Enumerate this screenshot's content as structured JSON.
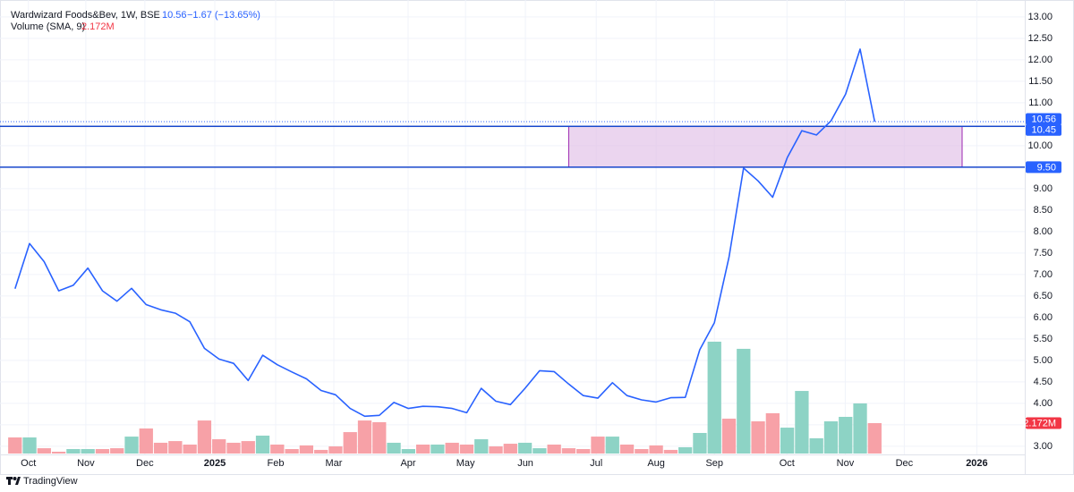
{
  "chart_data": {
    "type": "line",
    "title": "Wardwizard Foods&Bev, 1W, BSE",
    "header": {
      "price": "10.56",
      "change": "−1.67 (−13.65%)"
    },
    "color": "#2962ff",
    "values": [
      6.67,
      7.72,
      7.3,
      6.62,
      6.75,
      7.15,
      6.62,
      6.38,
      6.68,
      6.3,
      6.18,
      6.1,
      5.9,
      5.28,
      5.03,
      4.93,
      4.53,
      5.12,
      4.9,
      4.73,
      4.57,
      4.3,
      4.2,
      3.88,
      3.7,
      3.72,
      4.02,
      3.88,
      3.93,
      3.92,
      3.88,
      3.78,
      4.35,
      4.05,
      3.97,
      4.35,
      4.76,
      4.74,
      4.45,
      4.18,
      4.12,
      4.48,
      4.18,
      4.08,
      4.03,
      4.13,
      4.14,
      5.25,
      5.88,
      7.4,
      9.48,
      9.18,
      8.8,
      9.72,
      10.35,
      10.25,
      10.58,
      11.2,
      12.25,
      10.56
    ],
    "xlim": [
      -0.6,
      69.3
    ],
    "xticks": [
      {
        "value": 0.92,
        "label": "Oct"
      },
      {
        "value": 4.86,
        "label": "Nov"
      },
      {
        "value": 8.91,
        "label": "Dec"
      },
      {
        "value": 13.71,
        "label": "2025"
      },
      {
        "value": 17.89,
        "label": "Feb"
      },
      {
        "value": 21.88,
        "label": "Mar"
      },
      {
        "value": 26.98,
        "label": "Apr"
      },
      {
        "value": 30.92,
        "label": "May"
      },
      {
        "value": 35.03,
        "label": "Jun"
      },
      {
        "value": 39.89,
        "label": "Jul"
      },
      {
        "value": 44.0,
        "label": "Aug"
      },
      {
        "value": 48.0,
        "label": "Sep"
      },
      {
        "value": 52.98,
        "label": "Oct"
      },
      {
        "value": 56.98,
        "label": "Nov"
      },
      {
        "value": 61.03,
        "label": "Dec"
      },
      {
        "value": 66.01,
        "label": "2026"
      }
    ],
    "ylim": [
      2.81,
      13.29
    ],
    "yticks": [
      {
        "value": 3,
        "label": "3.00"
      },
      {
        "value": 3.5,
        "label": "3.50"
      },
      {
        "value": 4,
        "label": "4.00"
      },
      {
        "value": 4.5,
        "label": "4.50"
      },
      {
        "value": 5,
        "label": "5.00"
      },
      {
        "value": 5.5,
        "label": "5.50"
      },
      {
        "value": 6,
        "label": "6.00"
      },
      {
        "value": 6.5,
        "label": "6.50"
      },
      {
        "value": 7,
        "label": "7.00"
      },
      {
        "value": 7.5,
        "label": "7.50"
      },
      {
        "value": 8,
        "label": "8.00"
      },
      {
        "value": 8.5,
        "label": "8.50"
      },
      {
        "value": 9,
        "label": "9.00"
      },
      {
        "value": 9.5,
        "label": "9.50"
      },
      {
        "value": 10,
        "label": "10.00"
      },
      {
        "value": 10.5,
        "label": "10.50"
      },
      {
        "value": 11,
        "label": "11.00"
      },
      {
        "value": 11.5,
        "label": "11.50"
      },
      {
        "value": 12,
        "label": "12.00"
      },
      {
        "value": 12.5,
        "label": "12.50"
      },
      {
        "value": 13,
        "label": "13.00"
      }
    ],
    "grid": true,
    "last_price": {
      "value": 10.56,
      "label": "10.56"
    },
    "levels": [
      {
        "value": 10.45,
        "label": "10.45"
      },
      {
        "value": 9.5,
        "label": "9.50"
      }
    ],
    "zone": {
      "x": [
        38,
        65
      ],
      "y": [
        9.5,
        10.45
      ]
    },
    "volume": {
      "title": "Volume (SMA, 9)",
      "last_label": "2.172M",
      "values": [
        1.15,
        1.15,
        0.38,
        0.13,
        0.32,
        0.32,
        0.32,
        0.38,
        1.21,
        1.79,
        0.77,
        0.89,
        0.64,
        2.36,
        1.02,
        0.77,
        0.89,
        1.28,
        0.64,
        0.32,
        0.58,
        0.26,
        0.51,
        1.53,
        2.36,
        2.24,
        0.77,
        0.32,
        0.64,
        0.64,
        0.77,
        0.64,
        1.02,
        0.51,
        0.7,
        0.77,
        0.38,
        0.64,
        0.38,
        0.32,
        1.21,
        1.21,
        0.64,
        0.32,
        0.58,
        0.26,
        0.45,
        1.47,
        7.99,
        2.49,
        7.48,
        2.3,
        2.88,
        1.85,
        4.47,
        1.09,
        2.3,
        2.62,
        3.58,
        2.172
      ],
      "colors": [
        "#f7a1a7",
        "#8dd3c5",
        "#f7a1a7",
        "#f7a1a7",
        "#8dd3c5",
        "#8dd3c5",
        "#f7a1a7",
        "#f7a1a7",
        "#8dd3c5",
        "#f7a1a7",
        "#f7a1a7",
        "#f7a1a7",
        "#f7a1a7",
        "#f7a1a7",
        "#f7a1a7",
        "#f7a1a7",
        "#f7a1a7",
        "#8dd3c5",
        "#f7a1a7",
        "#f7a1a7",
        "#f7a1a7",
        "#f7a1a7",
        "#f7a1a7",
        "#f7a1a7",
        "#f7a1a7",
        "#f7a1a7",
        "#8dd3c5",
        "#8dd3c5",
        "#f7a1a7",
        "#8dd3c5",
        "#f7a1a7",
        "#f7a1a7",
        "#8dd3c5",
        "#f7a1a7",
        "#f7a1a7",
        "#8dd3c5",
        "#8dd3c5",
        "#f7a1a7",
        "#f7a1a7",
        "#f7a1a7",
        "#f7a1a7",
        "#8dd3c5",
        "#f7a1a7",
        "#f7a1a7",
        "#f7a1a7",
        "#f7a1a7",
        "#8dd3c5",
        "#8dd3c5",
        "#8dd3c5",
        "#f7a1a7",
        "#8dd3c5",
        "#f7a1a7",
        "#f7a1a7",
        "#8dd3c5",
        "#8dd3c5",
        "#8dd3c5",
        "#8dd3c5",
        "#8dd3c5",
        "#8dd3c5",
        "#f7a1a7"
      ]
    },
    "footer": "TradingView"
  }
}
